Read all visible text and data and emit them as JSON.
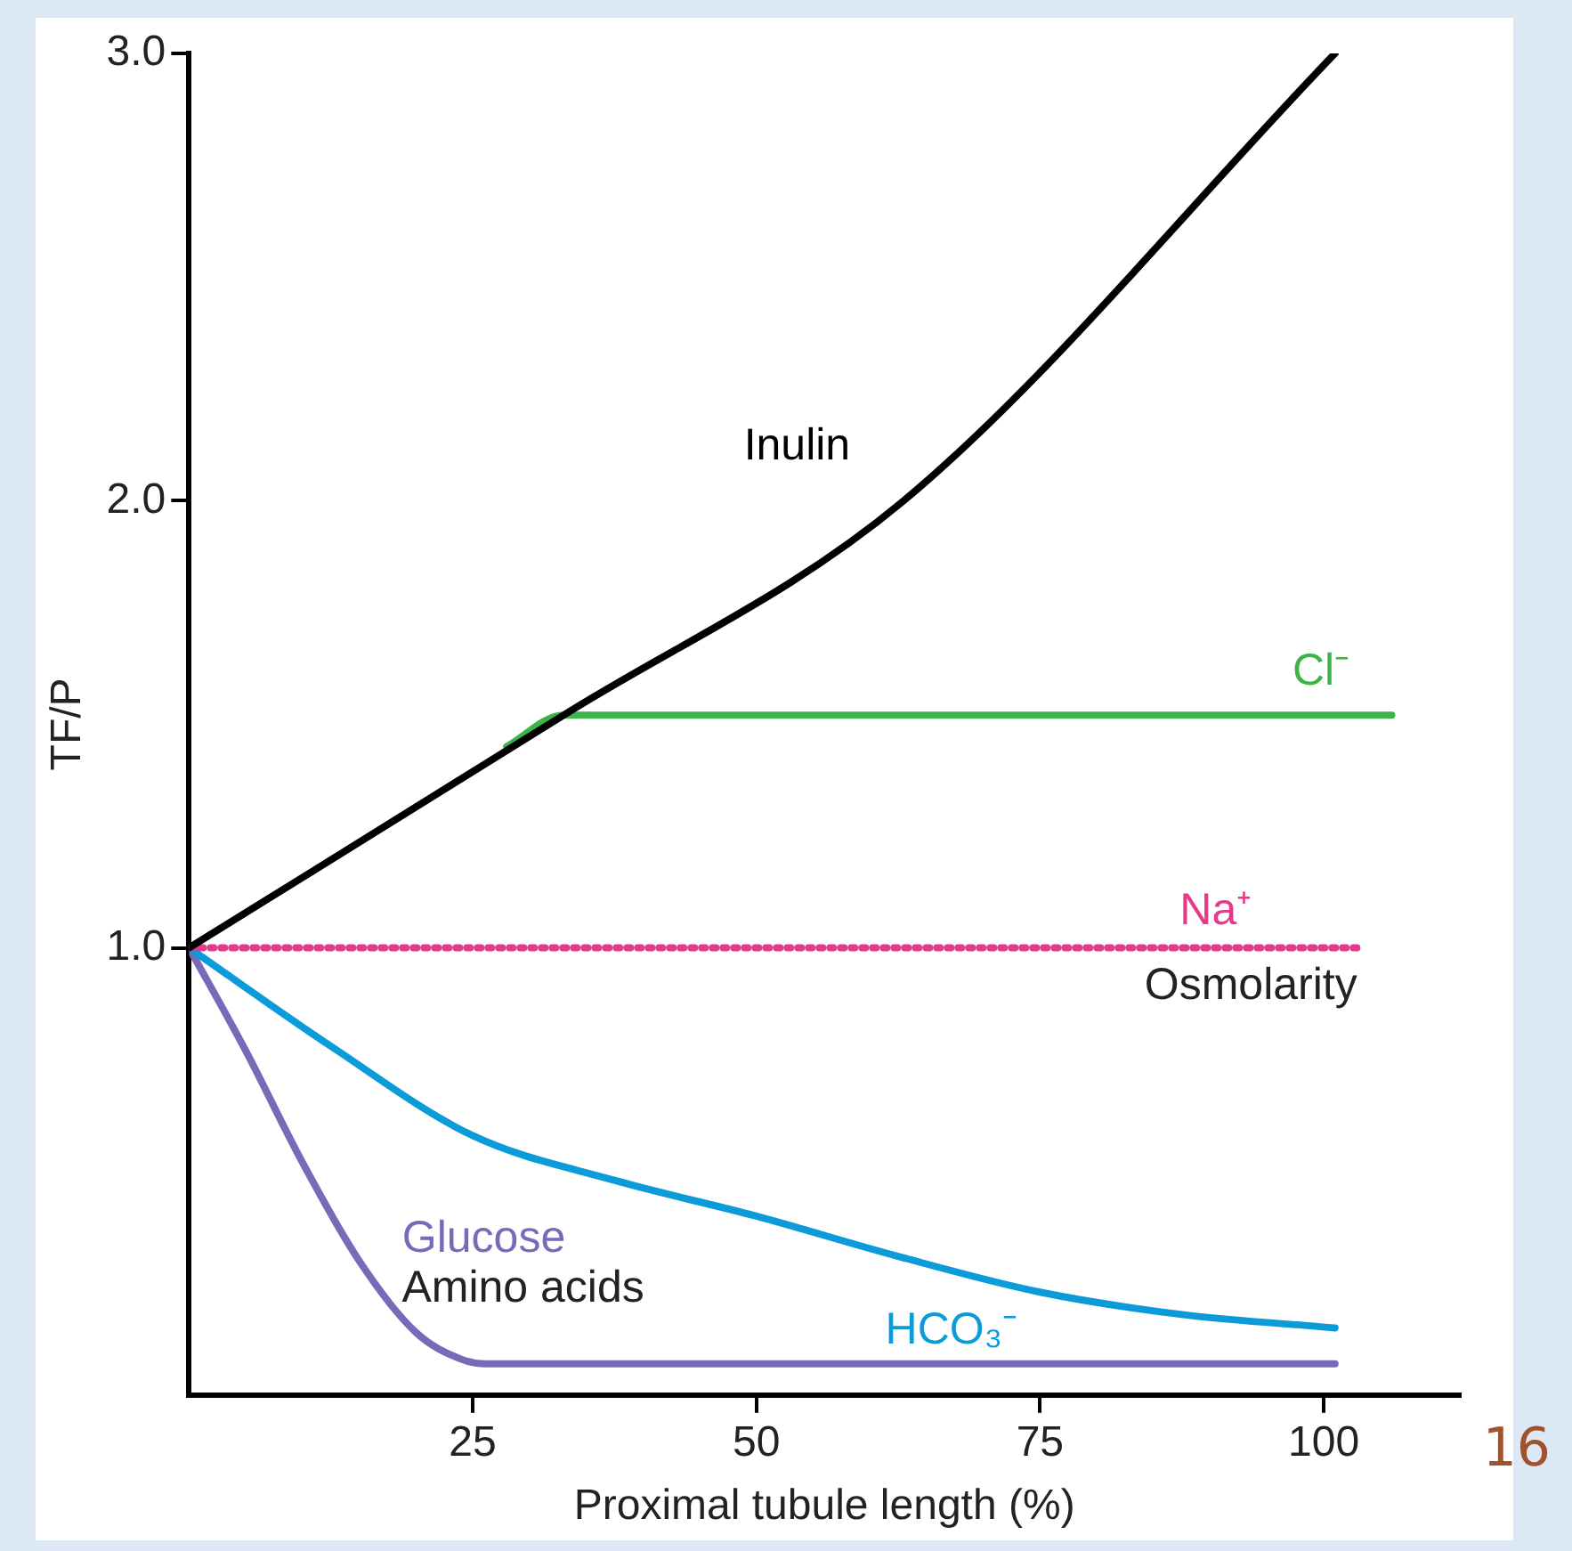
{
  "chart_data": {
    "type": "line",
    "xlabel": "Proximal tubule length (%)",
    "ylabel": "TF/P",
    "xlim": [
      0,
      112
    ],
    "xticks": [
      25,
      50,
      75,
      100
    ],
    "ylim": [
      0,
      3
    ],
    "yticks": [
      {
        "value": 1,
        "label": "1.0"
      },
      {
        "value": 2,
        "label": "2.0"
      },
      {
        "value": 3,
        "label": "3.0"
      }
    ],
    "grid": false,
    "legend": false,
    "marker": "none",
    "series": [
      {
        "name": "Inulin",
        "color": "#000000",
        "x": [
          0,
          33,
          63,
          101
        ],
        "values": [
          1.0,
          1.52,
          2.0,
          3.0
        ]
      },
      {
        "name": "Cl⁻",
        "color": "#3cb44a",
        "x": [
          28,
          33,
          106
        ],
        "values": [
          1.45,
          1.52,
          1.52
        ]
      },
      {
        "name": "Na⁺",
        "color": "#e8388a",
        "line_style": "dotted",
        "x": [
          0,
          103
        ],
        "values": [
          1.0,
          1.0
        ]
      },
      {
        "name": "HCO₃⁻",
        "color": "#0a9bd8",
        "x": [
          0,
          12.5,
          25,
          37.5,
          50,
          62.5,
          75,
          87.5,
          101
        ],
        "values": [
          1.0,
          0.78,
          0.58,
          0.48,
          0.4,
          0.31,
          0.23,
          0.18,
          0.15
        ]
      },
      {
        "name": "Glucose",
        "color": "#7a68b8",
        "x": [
          0,
          5,
          10,
          15,
          20,
          24,
          26,
          101
        ],
        "values": [
          1.0,
          0.77,
          0.52,
          0.3,
          0.14,
          0.08,
          0.07,
          0.07
        ]
      }
    ],
    "annotations": [
      "Osmolarity",
      "Amino acids",
      "16"
    ]
  }
}
